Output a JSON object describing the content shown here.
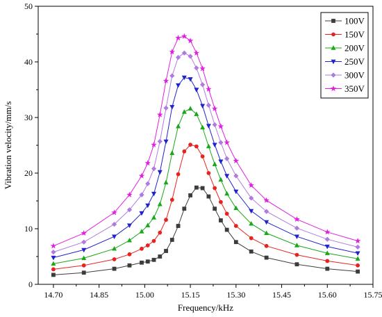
{
  "chart_data": {
    "type": "line",
    "title": "",
    "xlabel": "Frequency/kHz",
    "ylabel": "Vibration velocity/mm/s",
    "xlim": [
      14.65,
      15.75
    ],
    "ylim": [
      0,
      50
    ],
    "x_ticks": [
      14.7,
      14.85,
      15.0,
      15.15,
      15.3,
      15.45,
      15.6,
      15.75
    ],
    "x_tick_labels": [
      "14.70",
      "14.85",
      "15.00",
      "15.15",
      "15.30",
      "15.45",
      "15.60",
      "15.75"
    ],
    "y_ticks": [
      0,
      10,
      20,
      30,
      40,
      50
    ],
    "y_tick_labels": [
      "0",
      "10",
      "20",
      "30",
      "40",
      "50"
    ],
    "grid": false,
    "legend_position": "top-right",
    "series": [
      {
        "name": "100V",
        "color": "#3c3c3c",
        "marker": "square",
        "x": [
          14.7,
          14.8,
          14.9,
          14.95,
          14.99,
          15.01,
          15.03,
          15.05,
          15.07,
          15.09,
          15.11,
          15.13,
          15.15,
          15.17,
          15.19,
          15.21,
          15.23,
          15.25,
          15.27,
          15.3,
          15.35,
          15.4,
          15.5,
          15.6,
          15.7
        ],
        "y": [
          1.7,
          2.1,
          2.8,
          3.4,
          3.9,
          4.1,
          4.4,
          5.0,
          6.0,
          8.0,
          10.5,
          13.6,
          16.0,
          17.4,
          17.3,
          15.8,
          13.6,
          11.5,
          9.8,
          7.6,
          5.9,
          4.8,
          3.6,
          2.8,
          2.3
        ]
      },
      {
        "name": "150V",
        "color": "#e8231f",
        "marker": "circle",
        "x": [
          14.7,
          14.8,
          14.9,
          14.95,
          14.99,
          15.01,
          15.03,
          15.05,
          15.07,
          15.09,
          15.11,
          15.13,
          15.15,
          15.17,
          15.19,
          15.21,
          15.23,
          15.25,
          15.27,
          15.3,
          15.35,
          15.4,
          15.5,
          15.6,
          15.7
        ],
        "y": [
          2.7,
          3.4,
          4.5,
          5.4,
          6.4,
          7.0,
          7.8,
          9.3,
          11.6,
          15.2,
          19.8,
          23.9,
          25.1,
          24.8,
          23.0,
          20.0,
          17.3,
          14.8,
          12.7,
          10.5,
          8.3,
          6.9,
          5.3,
          4.2,
          3.4
        ]
      },
      {
        "name": "200V",
        "color": "#18a818",
        "marker": "triangle-up",
        "x": [
          14.7,
          14.8,
          14.9,
          14.95,
          14.99,
          15.01,
          15.03,
          15.05,
          15.07,
          15.09,
          15.11,
          15.13,
          15.15,
          15.17,
          15.19,
          15.21,
          15.23,
          15.25,
          15.27,
          15.3,
          15.35,
          15.4,
          15.5,
          15.6,
          15.7
        ],
        "y": [
          3.7,
          4.7,
          6.4,
          7.9,
          9.5,
          10.6,
          12.0,
          14.4,
          18.3,
          23.6,
          28.4,
          31.0,
          31.6,
          30.6,
          28.2,
          24.8,
          21.6,
          18.8,
          16.3,
          13.7,
          10.9,
          9.2,
          7.0,
          5.6,
          4.6
        ]
      },
      {
        "name": "250V",
        "color": "#2222cc",
        "marker": "triangle-down",
        "x": [
          14.7,
          14.8,
          14.9,
          14.95,
          14.99,
          15.01,
          15.03,
          15.05,
          15.07,
          15.09,
          15.11,
          15.13,
          15.15,
          15.17,
          15.19,
          15.21,
          15.23,
          15.25,
          15.27,
          15.3,
          15.35,
          15.4,
          15.5,
          15.6,
          15.7
        ],
        "y": [
          4.8,
          6.2,
          8.6,
          10.6,
          12.8,
          14.2,
          16.3,
          20.2,
          25.7,
          31.9,
          35.8,
          37.2,
          36.9,
          35.0,
          32.1,
          28.5,
          25.1,
          22.1,
          19.5,
          16.7,
          13.2,
          11.2,
          8.6,
          6.8,
          5.6
        ]
      },
      {
        "name": "300V",
        "color": "#b07be0",
        "marker": "diamond",
        "x": [
          14.7,
          14.8,
          14.9,
          14.95,
          14.99,
          15.01,
          15.03,
          15.05,
          15.07,
          15.09,
          15.11,
          15.13,
          15.15,
          15.17,
          15.19,
          15.21,
          15.23,
          15.25,
          15.27,
          15.3,
          15.35,
          15.4,
          15.5,
          15.6,
          15.7
        ],
        "y": [
          5.8,
          7.6,
          10.8,
          13.4,
          16.1,
          18.1,
          20.8,
          25.7,
          31.7,
          37.5,
          40.8,
          41.6,
          41.0,
          38.9,
          35.9,
          32.2,
          28.7,
          25.5,
          22.6,
          19.5,
          15.5,
          13.1,
          10.1,
          8.1,
          6.7
        ]
      },
      {
        "name": "350V",
        "color": "#e020e0",
        "marker": "star",
        "x": [
          14.7,
          14.8,
          14.9,
          14.95,
          14.99,
          15.01,
          15.03,
          15.05,
          15.07,
          15.09,
          15.11,
          15.13,
          15.15,
          15.17,
          15.19,
          15.21,
          15.23,
          15.25,
          15.27,
          15.3,
          15.35,
          15.4,
          15.5,
          15.6,
          15.7
        ],
        "y": [
          6.9,
          9.2,
          12.9,
          16.1,
          19.5,
          21.8,
          25.1,
          30.5,
          36.6,
          41.8,
          44.3,
          44.6,
          43.8,
          41.6,
          38.8,
          35.1,
          31.6,
          28.4,
          25.5,
          22.2,
          17.8,
          15.1,
          11.7,
          9.4,
          7.8
        ]
      }
    ]
  }
}
